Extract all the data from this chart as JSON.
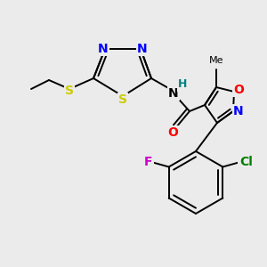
{
  "background_color": "#ebebeb",
  "figsize": [
    3.0,
    3.0
  ],
  "dpi": 100,
  "bond_lw": 1.4,
  "black": "#000000",
  "colors": {
    "N": "#0000ff",
    "O": "#ff0000",
    "S": "#cccc00",
    "F": "#cc00cc",
    "Cl": "#008000",
    "H": "#008080",
    "C": "#000000"
  }
}
